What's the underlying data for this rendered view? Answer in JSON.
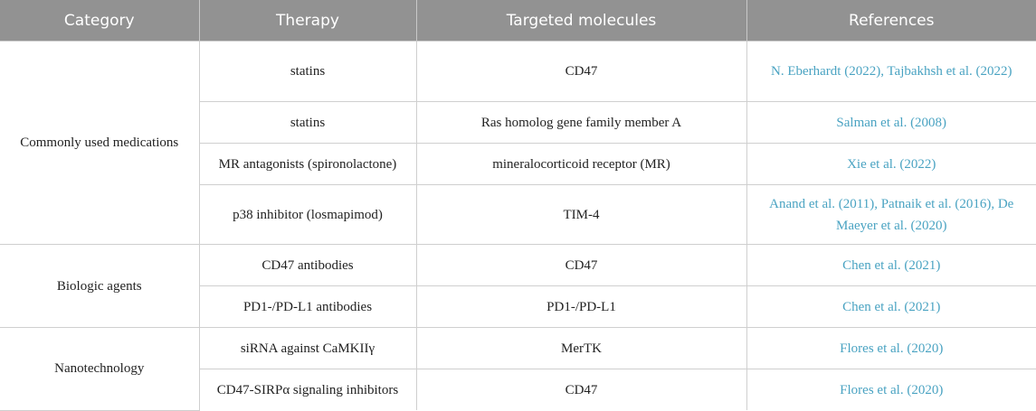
{
  "headers": [
    "Category",
    "Therapy",
    "Targeted molecules",
    "References"
  ],
  "groups": [
    {
      "category": "Commonly used medications",
      "rows": [
        {
          "therapy": "statins",
          "target": "CD47",
          "ref": "N. Eberhardt (2022), Tajbakhsh et al. (2022)"
        },
        {
          "therapy": "statins",
          "target": "Ras homolog gene family member A",
          "ref": "Salman et al. (2008)"
        },
        {
          "therapy": "MR antagonists (spironolactone)",
          "target": "mineralocorticoid receptor (MR)",
          "ref": "Xie et al. (2022)"
        },
        {
          "therapy": "p38 inhibitor (losmapimod)",
          "target": "TIM-4",
          "ref": "Anand et al. (2011), Patnaik et al. (2016), De Maeyer et al. (2020)"
        }
      ]
    },
    {
      "category": "Biologic agents",
      "rows": [
        {
          "therapy": "CD47 antibodies",
          "target": "CD47",
          "ref": "Chen et al. (2021)"
        },
        {
          "therapy": "PD1-/PD-L1 antibodies",
          "target": "PD1-/PD-L1",
          "ref": "Chen et al. (2021)"
        }
      ]
    },
    {
      "category": "Nanotechnology",
      "rows": [
        {
          "therapy": "siRNA against CaMKIIγ",
          "target": "MerTK",
          "ref": "Flores et al. (2020)"
        },
        {
          "therapy": "CD47-SIRPα signaling inhibitors",
          "target": "CD47",
          "ref": "Flores et al. (2020)"
        }
      ]
    }
  ],
  "colors": {
    "header_bg": "#929292",
    "link": "#4aa3c2"
  }
}
